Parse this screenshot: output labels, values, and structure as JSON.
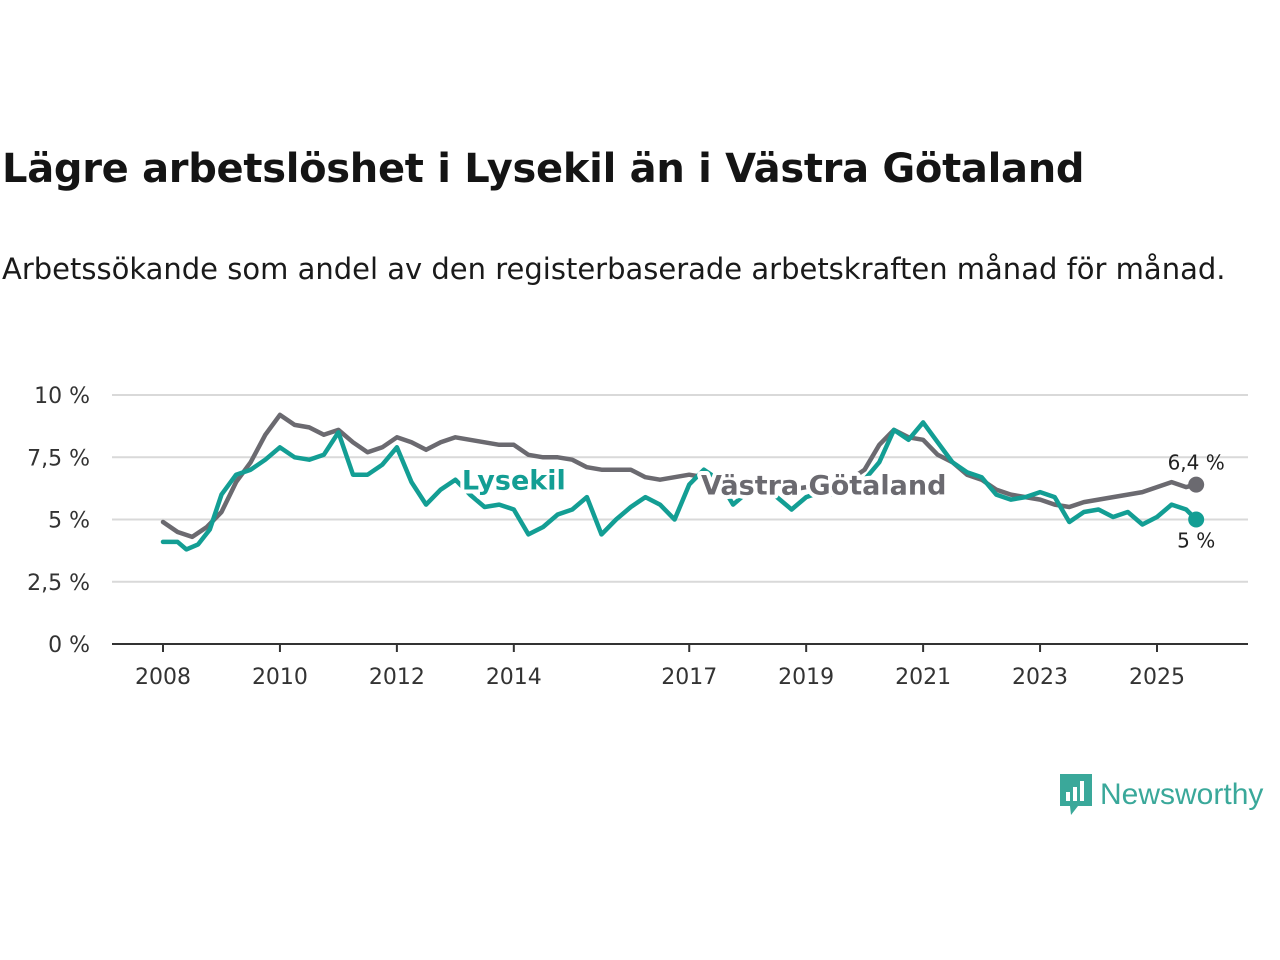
{
  "header": {
    "title": "Lägre arbetslöshet i Lysekil än i Västra Götaland",
    "subtitle": "Arbetssökande som andel av den registerbaserade arbetskraften månad för månad."
  },
  "brand": {
    "name": "Newsworthy",
    "color": "#3aa89a"
  },
  "colors": {
    "lysekil": "#139e94",
    "vastra": "#6b6a70",
    "grid": "#d9d9d9",
    "axis": "#333333"
  },
  "chart_data": {
    "type": "line",
    "ylim": [
      0,
      10
    ],
    "y_ticks": [
      0,
      2.5,
      5,
      7.5,
      10
    ],
    "y_tick_labels": [
      "0 %",
      "2,5 %",
      "5 %",
      "7,5 %",
      "10 %"
    ],
    "x_range": [
      2007.75,
      2026.3
    ],
    "x_ticks": [
      2008,
      2010,
      2012,
      2014,
      2017,
      2019,
      2021,
      2023,
      2025
    ],
    "x_tick_labels": [
      "2008",
      "2010",
      "2012",
      "2014",
      "2017",
      "2019",
      "2021",
      "2023",
      "2025"
    ],
    "series": [
      {
        "name": "Västra Götaland",
        "key": "vastra",
        "end_label": "6,4 %",
        "x": [
          2008.0,
          2008.25,
          2008.5,
          2008.75,
          2009.0,
          2009.25,
          2009.5,
          2009.75,
          2010.0,
          2010.25,
          2010.5,
          2010.75,
          2011.0,
          2011.25,
          2011.5,
          2011.75,
          2012.0,
          2012.25,
          2012.5,
          2012.75,
          2013.0,
          2013.25,
          2013.5,
          2013.75,
          2014.0,
          2014.25,
          2014.5,
          2014.75,
          2015.0,
          2015.25,
          2015.5,
          2015.75,
          2016.0,
          2016.25,
          2016.5,
          2016.75,
          2017.0,
          2017.25,
          2017.5,
          2017.75,
          2018.0,
          2018.25,
          2018.5,
          2018.75,
          2019.0,
          2019.25,
          2019.5,
          2019.75,
          2020.0,
          2020.25,
          2020.5,
          2020.75,
          2021.0,
          2021.25,
          2021.5,
          2021.75,
          2022.0,
          2022.25,
          2022.5,
          2022.75,
          2023.0,
          2023.25,
          2023.5,
          2023.75,
          2024.0,
          2024.25,
          2024.5,
          2024.75,
          2025.0,
          2025.25,
          2025.5,
          2025.67
        ],
        "values": [
          4.9,
          4.5,
          4.3,
          4.7,
          5.3,
          6.5,
          7.3,
          8.4,
          9.2,
          8.8,
          8.7,
          8.4,
          8.6,
          8.1,
          7.7,
          7.9,
          8.3,
          8.1,
          7.8,
          8.1,
          8.3,
          8.2,
          8.1,
          8.0,
          8.0,
          7.6,
          7.5,
          7.5,
          7.4,
          7.1,
          7.0,
          7.0,
          7.0,
          6.7,
          6.6,
          6.7,
          6.8,
          6.7,
          6.5,
          6.5,
          6.4,
          6.3,
          6.2,
          6.2,
          6.3,
          6.3,
          6.4,
          6.6,
          7.0,
          8.0,
          8.6,
          8.3,
          8.2,
          7.6,
          7.3,
          6.8,
          6.6,
          6.2,
          6.0,
          5.9,
          5.8,
          5.6,
          5.5,
          5.7,
          5.8,
          5.9,
          6.0,
          6.1,
          6.3,
          6.5,
          6.3,
          6.4
        ]
      },
      {
        "name": "Lysekil",
        "key": "lysekil",
        "end_label": "5 %",
        "x": [
          2008.0,
          2008.25,
          2008.4,
          2008.6,
          2008.8,
          2009.0,
          2009.25,
          2009.5,
          2009.75,
          2010.0,
          2010.25,
          2010.5,
          2010.75,
          2011.0,
          2011.25,
          2011.5,
          2011.75,
          2012.0,
          2012.25,
          2012.5,
          2012.75,
          2013.0,
          2013.25,
          2013.5,
          2013.75,
          2014.0,
          2014.25,
          2014.5,
          2014.75,
          2015.0,
          2015.25,
          2015.5,
          2015.75,
          2016.0,
          2016.25,
          2016.5,
          2016.75,
          2017.0,
          2017.25,
          2017.5,
          2017.75,
          2018.0,
          2018.25,
          2018.5,
          2018.75,
          2019.0,
          2019.25,
          2019.5,
          2019.75,
          2020.0,
          2020.25,
          2020.5,
          2020.75,
          2021.0,
          2021.25,
          2021.5,
          2021.75,
          2022.0,
          2022.25,
          2022.5,
          2022.75,
          2023.0,
          2023.25,
          2023.5,
          2023.75,
          2024.0,
          2024.25,
          2024.5,
          2024.75,
          2025.0,
          2025.25,
          2025.5,
          2025.67
        ],
        "values": [
          4.1,
          4.1,
          3.8,
          4.0,
          4.6,
          6.0,
          6.8,
          7.0,
          7.4,
          7.9,
          7.5,
          7.4,
          7.6,
          8.5,
          6.8,
          6.8,
          7.2,
          7.9,
          6.5,
          5.6,
          6.2,
          6.6,
          6.0,
          5.5,
          5.6,
          5.4,
          4.4,
          4.7,
          5.2,
          5.4,
          5.9,
          4.4,
          5.0,
          5.5,
          5.9,
          5.6,
          5.0,
          6.4,
          7.0,
          6.6,
          5.6,
          6.1,
          6.3,
          5.9,
          5.4,
          5.9,
          6.1,
          6.0,
          6.2,
          6.6,
          7.3,
          8.6,
          8.2,
          8.9,
          8.1,
          7.3,
          6.9,
          6.7,
          6.0,
          5.8,
          5.9,
          6.1,
          5.9,
          4.9,
          5.3,
          5.4,
          5.1,
          5.3,
          4.8,
          5.1,
          5.6,
          5.4,
          5.0
        ]
      }
    ],
    "annotations": [
      {
        "text": "Lysekil",
        "series": "lysekil",
        "x": 2014.0,
        "y": 6.6
      },
      {
        "text": "Västra Götaland",
        "series": "vastra",
        "x": 2019.3,
        "y": 6.4
      }
    ]
  }
}
